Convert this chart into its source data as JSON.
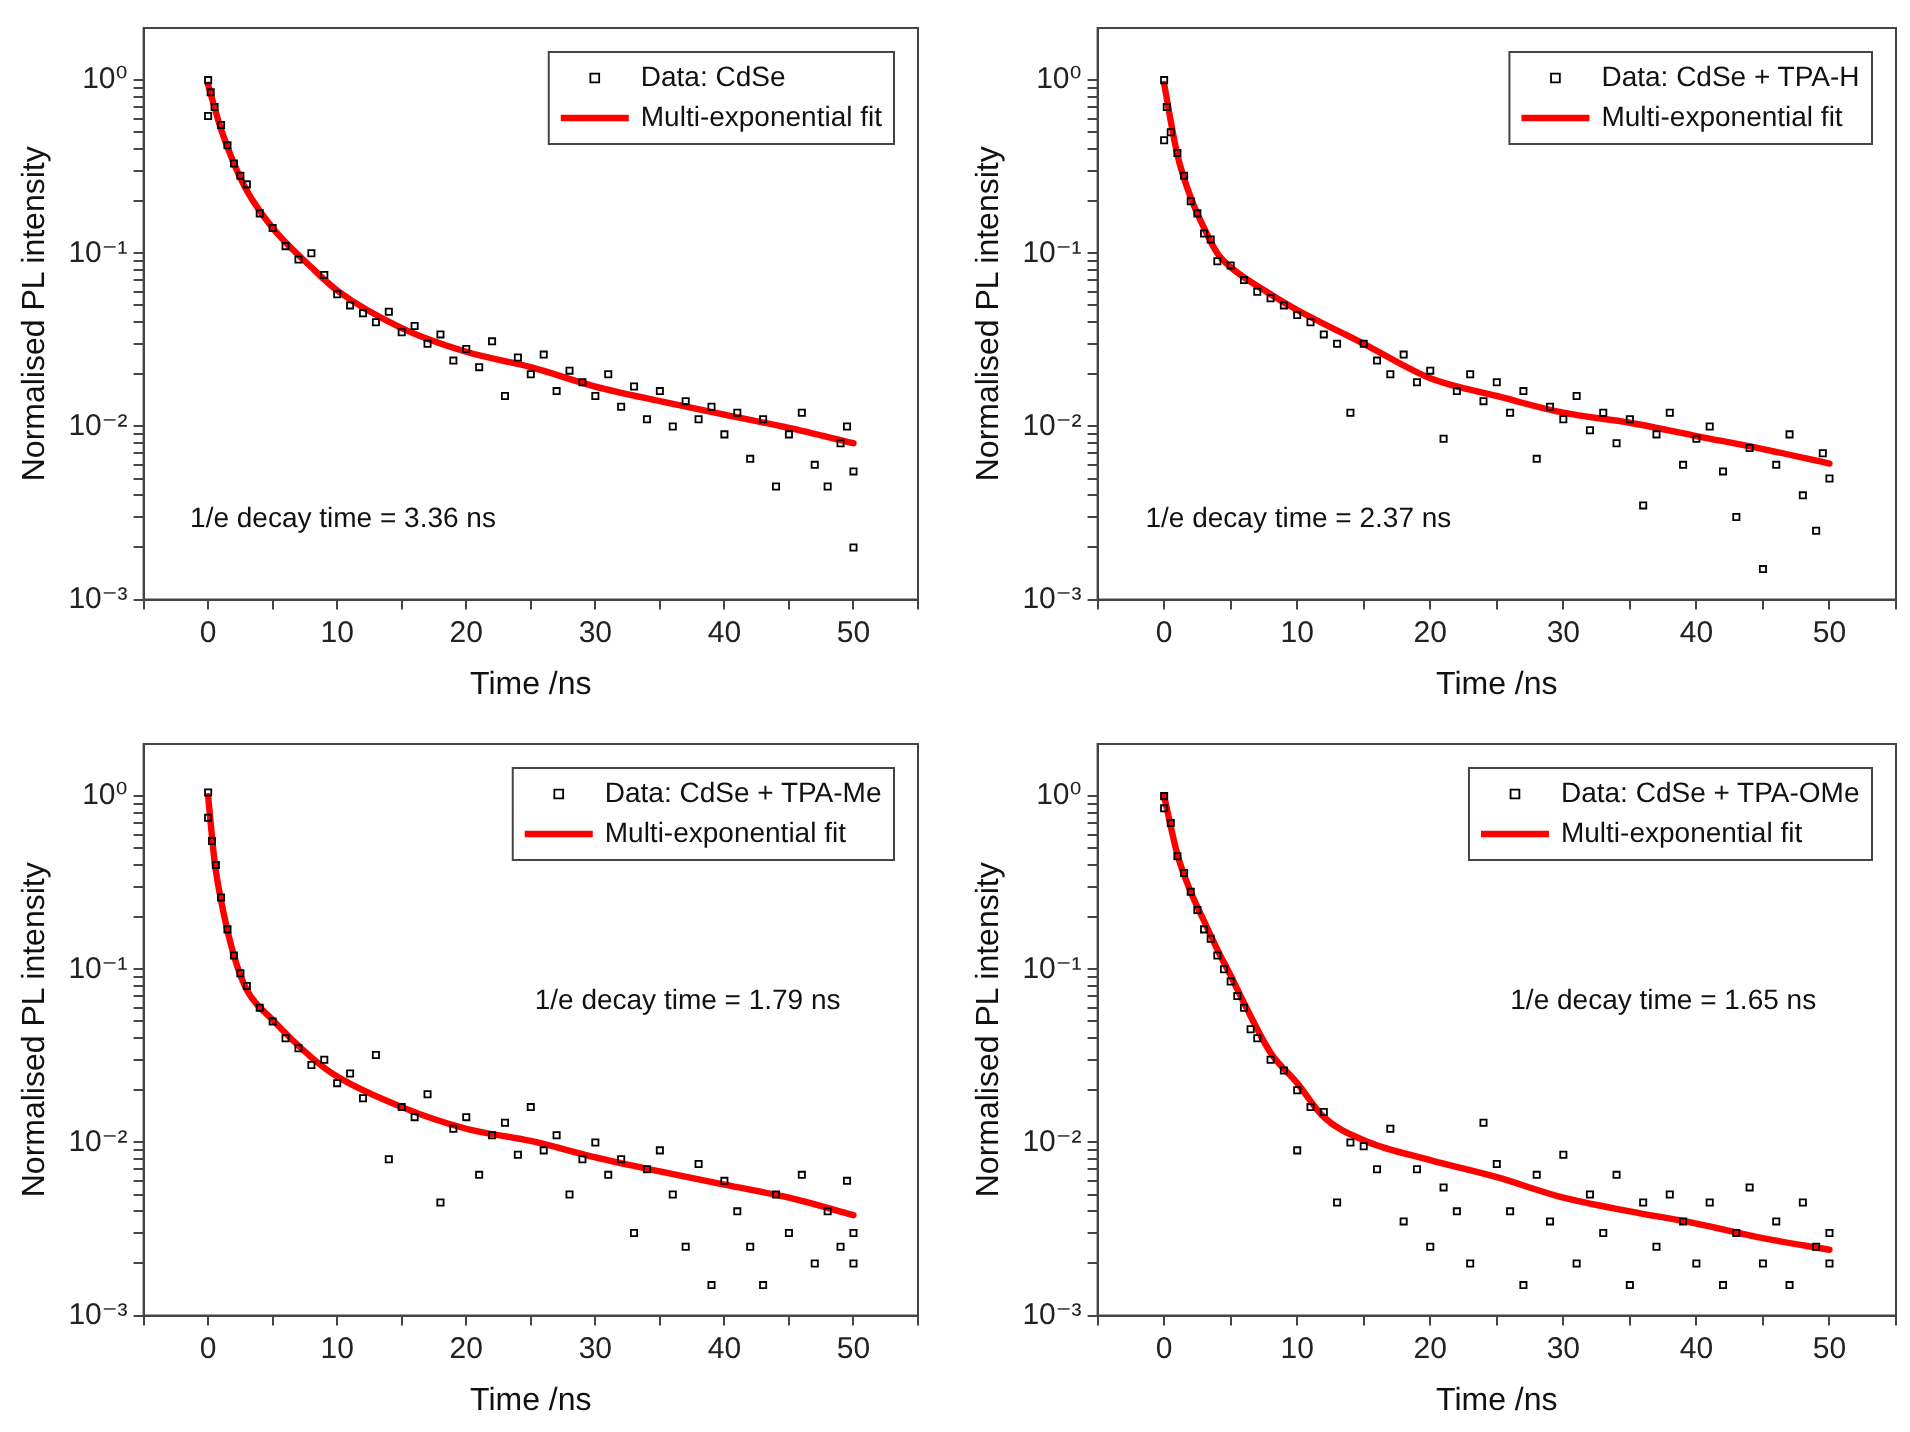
{
  "chart_data": [
    {
      "type": "scatter",
      "xlabel": "Time /ns",
      "ylabel": "Normalised PL intensity",
      "log": "y",
      "grid": false,
      "legend": "top right",
      "xlim": [
        -5,
        55
      ],
      "ylim": [
        0.001,
        2
      ],
      "xticks": [
        {
          "value": -5,
          "label": null
        },
        0,
        {
          "value": 5,
          "label": null
        },
        10,
        {
          "value": 15,
          "label": null
        },
        20,
        {
          "value": 25,
          "label": null
        },
        30,
        {
          "value": 35,
          "label": null
        },
        40,
        {
          "value": 45,
          "label": null
        },
        50,
        {
          "value": 55,
          "label": null
        }
      ],
      "yticks": [
        {
          "value": 0.001,
          "label": "10⁻³"
        },
        {
          "value": 0.002,
          "label": null
        },
        {
          "value": 0.003,
          "label": null
        },
        {
          "value": 0.004,
          "label": null
        },
        {
          "value": 0.005,
          "label": null
        },
        {
          "value": 0.006,
          "label": null
        },
        {
          "value": 0.007,
          "label": null
        },
        {
          "value": 0.008,
          "label": null
        },
        {
          "value": 0.009,
          "label": null
        },
        {
          "value": 0.01,
          "label": "10⁻²"
        },
        {
          "value": 0.02,
          "label": null
        },
        {
          "value": 0.03,
          "label": null
        },
        {
          "value": 0.04,
          "label": null
        },
        {
          "value": 0.05,
          "label": null
        },
        {
          "value": 0.06,
          "label": null
        },
        {
          "value": 0.07,
          "label": null
        },
        {
          "value": 0.08,
          "label": null
        },
        {
          "value": 0.09,
          "label": null
        },
        {
          "value": 0.1,
          "label": "10⁻¹"
        },
        {
          "value": 0.2,
          "label": null
        },
        {
          "value": 0.3,
          "label": null
        },
        {
          "value": 0.4,
          "label": null
        },
        {
          "value": 0.5,
          "label": null
        },
        {
          "value": 0.6,
          "label": null
        },
        {
          "value": 0.7,
          "label": null
        },
        {
          "value": 0.8,
          "label": null
        },
        {
          "value": 0.9,
          "label": null
        },
        {
          "value": 1,
          "label": "10⁰"
        }
      ],
      "annotations": [
        "1/e decay time = 3.36 ns"
      ],
      "series": [
        {
          "name": "Data: CdSe",
          "type": "scatter",
          "marker": "square",
          "color": "#000000",
          "x": [
            0,
            0,
            0.2,
            0.5,
            1,
            1.5,
            2,
            2.5,
            3,
            4,
            5,
            6,
            7,
            8,
            9,
            10,
            11,
            12,
            13,
            14,
            15,
            16,
            17,
            18,
            19,
            20,
            21,
            22,
            23,
            24,
            25,
            26,
            27,
            28,
            29,
            30,
            31,
            32,
            33,
            34,
            35,
            36,
            37,
            38,
            39,
            40,
            41,
            42,
            43,
            44,
            45,
            46,
            47,
            48,
            49,
            49.5,
            50,
            50
          ],
          "values": [
            0.62,
            1.0,
            0.85,
            0.7,
            0.55,
            0.42,
            0.33,
            0.28,
            0.25,
            0.17,
            0.14,
            0.11,
            0.092,
            0.1,
            0.075,
            0.058,
            0.05,
            0.045,
            0.04,
            0.046,
            0.035,
            0.038,
            0.03,
            0.034,
            0.024,
            0.028,
            0.022,
            0.031,
            0.015,
            0.025,
            0.02,
            0.026,
            0.016,
            0.021,
            0.018,
            0.015,
            0.02,
            0.013,
            0.017,
            0.011,
            0.016,
            0.01,
            0.014,
            0.011,
            0.013,
            0.009,
            0.012,
            0.0065,
            0.011,
            0.0045,
            0.009,
            0.012,
            0.006,
            0.0045,
            0.008,
            0.01,
            0.0055,
            0.002
          ]
        },
        {
          "name": "Multi-exponential fit",
          "type": "line",
          "marker": "none",
          "line_style": "solid",
          "color": "#ff0000",
          "x": [
            0,
            1,
            2,
            3,
            5,
            8,
            10,
            15,
            20,
            25,
            30,
            35,
            40,
            45,
            50
          ],
          "values": [
            0.94,
            0.52,
            0.33,
            0.23,
            0.14,
            0.083,
            0.061,
            0.037,
            0.027,
            0.022,
            0.017,
            0.014,
            0.0117,
            0.0098,
            0.008
          ]
        }
      ]
    },
    {
      "type": "scatter",
      "xlabel": "Time /ns",
      "ylabel": "Normalised PL intensity",
      "log": "y",
      "grid": false,
      "legend": "top right",
      "xlim": [
        -5,
        55
      ],
      "ylim": [
        0.001,
        2
      ],
      "xticks": [
        {
          "value": -5,
          "label": null
        },
        0,
        {
          "value": 5,
          "label": null
        },
        10,
        {
          "value": 15,
          "label": null
        },
        20,
        {
          "value": 25,
          "label": null
        },
        30,
        {
          "value": 35,
          "label": null
        },
        40,
        {
          "value": 45,
          "label": null
        },
        50,
        {
          "value": 55,
          "label": null
        }
      ],
      "yticks": [
        {
          "value": 0.001,
          "label": "10⁻³"
        },
        {
          "value": 0.002,
          "label": null
        },
        {
          "value": 0.003,
          "label": null
        },
        {
          "value": 0.004,
          "label": null
        },
        {
          "value": 0.005,
          "label": null
        },
        {
          "value": 0.006,
          "label": null
        },
        {
          "value": 0.007,
          "label": null
        },
        {
          "value": 0.008,
          "label": null
        },
        {
          "value": 0.009,
          "label": null
        },
        {
          "value": 0.01,
          "label": "10⁻²"
        },
        {
          "value": 0.02,
          "label": null
        },
        {
          "value": 0.03,
          "label": null
        },
        {
          "value": 0.04,
          "label": null
        },
        {
          "value": 0.05,
          "label": null
        },
        {
          "value": 0.06,
          "label": null
        },
        {
          "value": 0.07,
          "label": null
        },
        {
          "value": 0.08,
          "label": null
        },
        {
          "value": 0.09,
          "label": null
        },
        {
          "value": 0.1,
          "label": "10⁻¹"
        },
        {
          "value": 0.2,
          "label": null
        },
        {
          "value": 0.3,
          "label": null
        },
        {
          "value": 0.4,
          "label": null
        },
        {
          "value": 0.5,
          "label": null
        },
        {
          "value": 0.6,
          "label": null
        },
        {
          "value": 0.7,
          "label": null
        },
        {
          "value": 0.8,
          "label": null
        },
        {
          "value": 0.9,
          "label": null
        },
        {
          "value": 1,
          "label": "10⁰"
        }
      ],
      "annotations": [
        "1/e decay time = 2.37 ns"
      ],
      "series": [
        {
          "name": "Data: CdSe + TPA-H",
          "type": "scatter",
          "marker": "square",
          "color": "#000000",
          "x": [
            0,
            0,
            0.2,
            0.5,
            1,
            1.5,
            2,
            2.5,
            3,
            3.5,
            4,
            5,
            6,
            7,
            8,
            9,
            10,
            11,
            12,
            13,
            14,
            15,
            16,
            17,
            18,
            19,
            20,
            21,
            22,
            23,
            24,
            25,
            26,
            27,
            28,
            29,
            30,
            31,
            32,
            33,
            34,
            35,
            36,
            37,
            38,
            39,
            40,
            41,
            42,
            43,
            44,
            45,
            46,
            47,
            48,
            49,
            49.5,
            50
          ],
          "values": [
            0.45,
            1.0,
            0.7,
            0.5,
            0.38,
            0.28,
            0.2,
            0.17,
            0.13,
            0.12,
            0.09,
            0.085,
            0.07,
            0.06,
            0.055,
            0.05,
            0.044,
            0.04,
            0.034,
            0.03,
            0.012,
            0.03,
            0.024,
            0.02,
            0.026,
            0.018,
            0.021,
            0.0085,
            0.016,
            0.02,
            0.014,
            0.018,
            0.012,
            0.016,
            0.0065,
            0.013,
            0.011,
            0.015,
            0.0095,
            0.012,
            0.008,
            0.011,
            0.0035,
            0.009,
            0.012,
            0.006,
            0.0085,
            0.01,
            0.0055,
            0.003,
            0.0075,
            0.0015,
            0.006,
            0.009,
            0.004,
            0.0025,
            0.007,
            0.005
          ]
        },
        {
          "name": "Multi-exponential fit",
          "type": "line",
          "marker": "none",
          "line_style": "solid",
          "color": "#ff0000",
          "x": [
            0,
            1,
            2,
            3,
            4,
            5,
            8,
            10,
            15,
            20,
            25,
            30,
            35,
            40,
            45,
            50
          ],
          "values": [
            0.95,
            0.37,
            0.21,
            0.14,
            0.1,
            0.083,
            0.058,
            0.047,
            0.03,
            0.019,
            0.015,
            0.012,
            0.0105,
            0.0088,
            0.0074,
            0.0061
          ]
        }
      ]
    },
    {
      "type": "scatter",
      "xlabel": "Time /ns",
      "ylabel": "Normalised PL intensity",
      "log": "y",
      "grid": false,
      "legend": "top right",
      "xlim": [
        -5,
        55
      ],
      "ylim": [
        0.001,
        2
      ],
      "xticks": [
        {
          "value": -5,
          "label": null
        },
        0,
        {
          "value": 5,
          "label": null
        },
        10,
        {
          "value": 15,
          "label": null
        },
        20,
        {
          "value": 25,
          "label": null
        },
        30,
        {
          "value": 35,
          "label": null
        },
        40,
        {
          "value": 45,
          "label": null
        },
        50,
        {
          "value": 55,
          "label": null
        }
      ],
      "yticks": [
        {
          "value": 0.001,
          "label": "10⁻³"
        },
        {
          "value": 0.002,
          "label": null
        },
        {
          "value": 0.003,
          "label": null
        },
        {
          "value": 0.004,
          "label": null
        },
        {
          "value": 0.005,
          "label": null
        },
        {
          "value": 0.006,
          "label": null
        },
        {
          "value": 0.007,
          "label": null
        },
        {
          "value": 0.008,
          "label": null
        },
        {
          "value": 0.009,
          "label": null
        },
        {
          "value": 0.01,
          "label": "10⁻²"
        },
        {
          "value": 0.02,
          "label": null
        },
        {
          "value": 0.03,
          "label": null
        },
        {
          "value": 0.04,
          "label": null
        },
        {
          "value": 0.05,
          "label": null
        },
        {
          "value": 0.06,
          "label": null
        },
        {
          "value": 0.07,
          "label": null
        },
        {
          "value": 0.08,
          "label": null
        },
        {
          "value": 0.09,
          "label": null
        },
        {
          "value": 0.1,
          "label": "10⁻¹"
        },
        {
          "value": 0.2,
          "label": null
        },
        {
          "value": 0.3,
          "label": null
        },
        {
          "value": 0.4,
          "label": null
        },
        {
          "value": 0.5,
          "label": null
        },
        {
          "value": 0.6,
          "label": null
        },
        {
          "value": 0.7,
          "label": null
        },
        {
          "value": 0.8,
          "label": null
        },
        {
          "value": 0.9,
          "label": null
        },
        {
          "value": 1,
          "label": "10⁰"
        }
      ],
      "annotations": [
        "1/e decay time = 1.79 ns"
      ],
      "series": [
        {
          "name": "Data: CdSe + TPA-Me",
          "type": "scatter",
          "marker": "square",
          "color": "#000000",
          "x": [
            0,
            0,
            0.3,
            0.6,
            1,
            1.5,
            2,
            2.5,
            3,
            4,
            5,
            6,
            7,
            8,
            9,
            10,
            11,
            12,
            13,
            14,
            15,
            16,
            17,
            18,
            19,
            20,
            21,
            22,
            23,
            24,
            25,
            26,
            27,
            28,
            29,
            30,
            31,
            32,
            33,
            34,
            35,
            36,
            37,
            38,
            39,
            40,
            41,
            42,
            43,
            44,
            45,
            46,
            47,
            48,
            49,
            49.5,
            50,
            50
          ],
          "values": [
            0.75,
            1.05,
            0.55,
            0.4,
            0.26,
            0.17,
            0.12,
            0.095,
            0.08,
            0.06,
            0.05,
            0.04,
            0.035,
            0.028,
            0.03,
            0.022,
            0.025,
            0.018,
            0.032,
            0.008,
            0.016,
            0.014,
            0.019,
            0.0045,
            0.012,
            0.014,
            0.0065,
            0.011,
            0.013,
            0.0085,
            0.016,
            0.009,
            0.011,
            0.005,
            0.008,
            0.01,
            0.0065,
            0.008,
            0.003,
            0.007,
            0.009,
            0.005,
            0.0025,
            0.0075,
            0.0015,
            0.006,
            0.004,
            0.0025,
            0.0015,
            0.005,
            0.003,
            0.0065,
            0.002,
            0.004,
            0.0025,
            0.006,
            0.002,
            0.003
          ]
        },
        {
          "name": "Multi-exponential fit",
          "type": "line",
          "marker": "none",
          "line_style": "solid",
          "color": "#ff0000",
          "x": [
            0,
            0.5,
            1,
            2,
            3,
            5,
            8,
            10,
            15,
            20,
            25,
            30,
            35,
            40,
            45,
            50
          ],
          "values": [
            1.0,
            0.42,
            0.25,
            0.12,
            0.076,
            0.051,
            0.031,
            0.024,
            0.016,
            0.012,
            0.0102,
            0.0082,
            0.0068,
            0.0057,
            0.0048,
            0.0038
          ]
        }
      ]
    },
    {
      "type": "scatter",
      "xlabel": "Time /ns",
      "ylabel": "Normalised PL intensity",
      "log": "y",
      "grid": false,
      "legend": "top right",
      "xlim": [
        -5,
        55
      ],
      "ylim": [
        0.001,
        2
      ],
      "xticks": [
        {
          "value": -5,
          "label": null
        },
        0,
        {
          "value": 5,
          "label": null
        },
        10,
        {
          "value": 15,
          "label": null
        },
        20,
        {
          "value": 25,
          "label": null
        },
        30,
        {
          "value": 35,
          "label": null
        },
        40,
        {
          "value": 45,
          "label": null
        },
        50,
        {
          "value": 55,
          "label": null
        }
      ],
      "yticks": [
        {
          "value": 0.001,
          "label": "10⁻³"
        },
        {
          "value": 0.002,
          "label": null
        },
        {
          "value": 0.003,
          "label": null
        },
        {
          "value": 0.004,
          "label": null
        },
        {
          "value": 0.005,
          "label": null
        },
        {
          "value": 0.006,
          "label": null
        },
        {
          "value": 0.007,
          "label": null
        },
        {
          "value": 0.008,
          "label": null
        },
        {
          "value": 0.009,
          "label": null
        },
        {
          "value": 0.01,
          "label": "10⁻²"
        },
        {
          "value": 0.02,
          "label": null
        },
        {
          "value": 0.03,
          "label": null
        },
        {
          "value": 0.04,
          "label": null
        },
        {
          "value": 0.05,
          "label": null
        },
        {
          "value": 0.06,
          "label": null
        },
        {
          "value": 0.07,
          "label": null
        },
        {
          "value": 0.08,
          "label": null
        },
        {
          "value": 0.09,
          "label": null
        },
        {
          "value": 0.1,
          "label": "10⁻¹"
        },
        {
          "value": 0.2,
          "label": null
        },
        {
          "value": 0.3,
          "label": null
        },
        {
          "value": 0.4,
          "label": null
        },
        {
          "value": 0.5,
          "label": null
        },
        {
          "value": 0.6,
          "label": null
        },
        {
          "value": 0.7,
          "label": null
        },
        {
          "value": 0.8,
          "label": null
        },
        {
          "value": 0.9,
          "label": null
        },
        {
          "value": 1,
          "label": "10⁰"
        }
      ],
      "annotations": [
        "1/e decay time = 1.65 ns"
      ],
      "series": [
        {
          "name": "Data: CdSe + TPA-OMe",
          "type": "scatter",
          "marker": "square",
          "color": "#000000",
          "x": [
            0,
            0,
            0.5,
            1,
            1.5,
            2,
            2.5,
            3,
            3.5,
            4,
            4.5,
            5,
            5.5,
            6,
            6.5,
            7,
            8,
            9,
            10,
            10,
            11,
            12,
            13,
            14,
            15,
            16,
            17,
            18,
            19,
            20,
            21,
            22,
            23,
            24,
            25,
            26,
            27,
            28,
            29,
            30,
            31,
            32,
            33,
            34,
            35,
            36,
            37,
            38,
            39,
            40,
            41,
            42,
            43,
            44,
            45,
            46,
            47,
            48,
            49,
            50,
            50
          ],
          "values": [
            0.85,
            1.0,
            0.7,
            0.45,
            0.36,
            0.28,
            0.22,
            0.17,
            0.15,
            0.12,
            0.1,
            0.085,
            0.07,
            0.06,
            0.045,
            0.04,
            0.03,
            0.026,
            0.02,
            0.009,
            0.016,
            0.015,
            0.0045,
            0.01,
            0.0095,
            0.007,
            0.012,
            0.0035,
            0.007,
            0.0025,
            0.0055,
            0.004,
            0.002,
            0.013,
            0.0075,
            0.004,
            0.0015,
            0.0065,
            0.0035,
            0.0085,
            0.002,
            0.005,
            0.003,
            0.0065,
            0.0015,
            0.0045,
            0.0025,
            0.005,
            0.0035,
            0.002,
            0.0045,
            0.0015,
            0.003,
            0.0055,
            0.002,
            0.0035,
            0.0015,
            0.0045,
            0.0025,
            0.003,
            0.002
          ]
        },
        {
          "name": "Multi-exponential fit",
          "type": "line",
          "marker": "none",
          "line_style": "solid",
          "color": "#ff0000",
          "x": [
            0,
            1,
            2,
            3,
            4,
            5,
            6,
            8,
            10,
            12,
            15,
            20,
            25,
            30,
            35,
            40,
            45,
            50
          ],
          "values": [
            1.0,
            0.46,
            0.28,
            0.19,
            0.13,
            0.092,
            0.064,
            0.033,
            0.022,
            0.014,
            0.0103,
            0.0079,
            0.0063,
            0.0048,
            0.004,
            0.0034,
            0.0028,
            0.0024
          ]
        }
      ]
    }
  ]
}
